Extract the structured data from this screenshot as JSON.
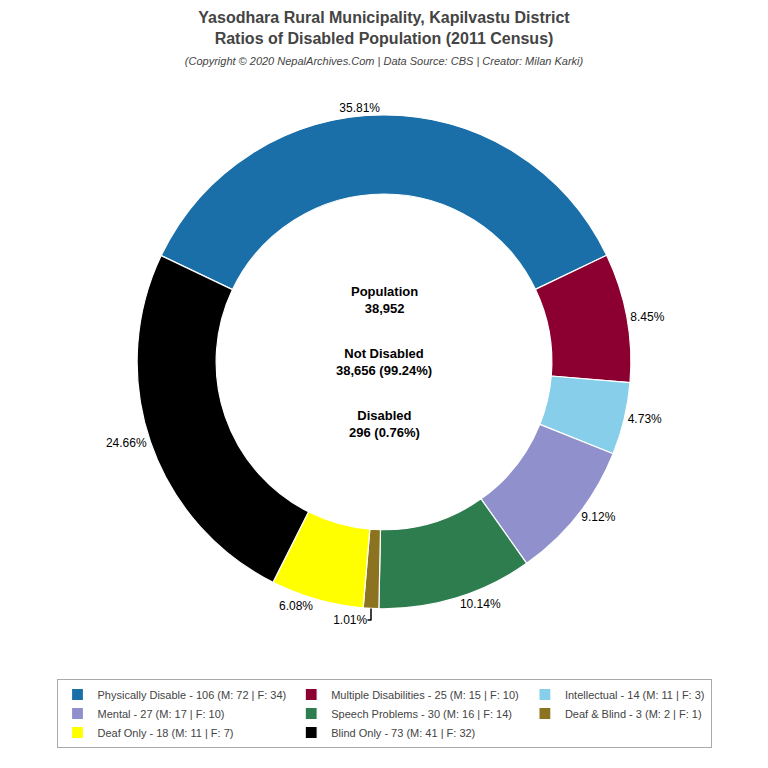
{
  "chart_data": {
    "type": "pie",
    "title": "Yasodhara Rural Municipality, Kapilvastu District\nRatios of Disabled Population (2011 Census)",
    "subtitle": "(Copyright © 2020 NepalArchives.Com | Data Source: CBS | Creator: Milan Karki)",
    "categories": [
      "Physically Disable - 106 (M: 72 | F: 34)",
      "Multiple Disabilities - 25 (M: 15 | F: 10)",
      "Intellectual - 14 (M: 11 | F: 3)",
      "Mental - 27 (M: 17 | F: 10)",
      "Speech Problems - 30 (M: 16 | F: 14)",
      "Deaf & Blind - 3 (M: 2 | F: 1)",
      "Deaf Only - 18 (M: 11 | F: 7)",
      "Blind Only - 73 (M: 41 | F: 32)"
    ],
    "values": [
      35.81,
      8.45,
      4.73,
      9.12,
      10.14,
      1.01,
      6.08,
      24.66
    ],
    "value_labels": [
      "35.81%",
      "8.45%",
      "4.73%",
      "9.12%",
      "10.14%",
      "1.01%",
      "6.08%",
      "24.66%"
    ],
    "colors": [
      "#1a6fa8",
      "#8b0030",
      "#87ceeb",
      "#9090cc",
      "#2e7d4f",
      "#8b7320",
      "#ffff00",
      "#000000"
    ],
    "annotations": [
      "Population\n38,952",
      "Not Disabled\n38,656 (99.24%)",
      "Disabled\n296 (0.76%)"
    ],
    "data_labels": true,
    "legend": "bottom"
  }
}
